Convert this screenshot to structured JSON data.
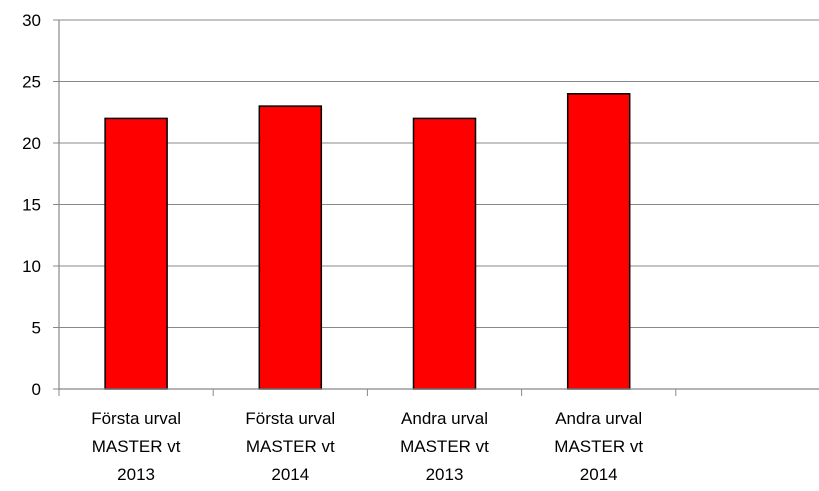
{
  "chart_data": {
    "type": "bar",
    "title": "",
    "xlabel": "",
    "ylabel": "",
    "categories": [
      [
        "Första urval",
        "MASTER vt",
        "2013"
      ],
      [
        "Första urval",
        "MASTER vt",
        "2014"
      ],
      [
        "Andra urval",
        "MASTER vt",
        "2013"
      ],
      [
        "Andra urval",
        "MASTER vt",
        "2014"
      ]
    ],
    "values": [
      22,
      23,
      22,
      24
    ],
    "ylim": [
      0,
      30
    ],
    "yticks": [
      0,
      5,
      10,
      15,
      20,
      25,
      30
    ],
    "grid": true,
    "legend": "none",
    "bar_color": "#ff0000",
    "bar_edge_color": "#000000",
    "gridline_color": "#888888"
  }
}
